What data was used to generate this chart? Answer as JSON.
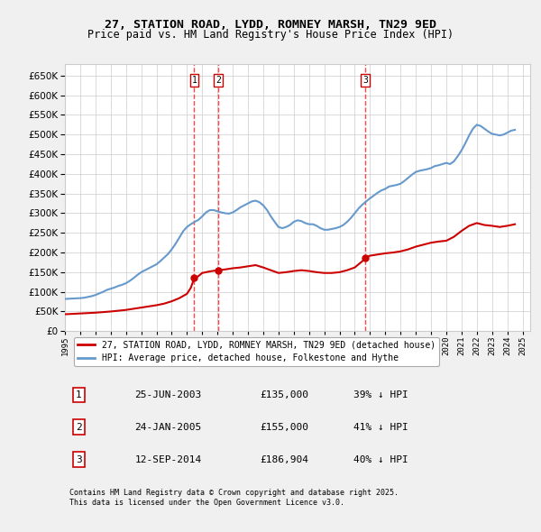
{
  "title": "27, STATION ROAD, LYDD, ROMNEY MARSH, TN29 9ED",
  "subtitle": "Price paid vs. HM Land Registry's House Price Index (HPI)",
  "ylabel": "",
  "ylim": [
    0,
    680000
  ],
  "yticks": [
    0,
    50000,
    100000,
    150000,
    200000,
    250000,
    300000,
    350000,
    400000,
    450000,
    500000,
    550000,
    600000,
    650000
  ],
  "background_color": "#f0f0f0",
  "plot_bg_color": "#ffffff",
  "grid_color": "#cccccc",
  "red_line_color": "#cc0000",
  "blue_line_color": "#6699cc",
  "vline_color": "#ff4444",
  "sale_markers": [
    {
      "date_num": 2003.48,
      "price": 135000,
      "label": "1"
    },
    {
      "date_num": 2005.07,
      "price": 155000,
      "label": "2"
    },
    {
      "date_num": 2014.7,
      "price": 186904,
      "label": "3"
    }
  ],
  "table_rows": [
    {
      "num": "1",
      "date": "25-JUN-2003",
      "price": "£135,000",
      "pct": "39% ↓ HPI"
    },
    {
      "num": "2",
      "date": "24-JAN-2005",
      "price": "£155,000",
      "pct": "41% ↓ HPI"
    },
    {
      "num": "3",
      "date": "12-SEP-2014",
      "price": "£186,904",
      "pct": "40% ↓ HPI"
    }
  ],
  "legend_entries": [
    "27, STATION ROAD, LYDD, ROMNEY MARSH, TN29 9ED (detached house)",
    "HPI: Average price, detached house, Folkestone and Hythe"
  ],
  "footer": "Contains HM Land Registry data © Crown copyright and database right 2025.\nThis data is licensed under the Open Government Licence v3.0.",
  "hpi_data": {
    "years": [
      1995.0,
      1995.25,
      1995.5,
      1995.75,
      1996.0,
      1996.25,
      1996.5,
      1996.75,
      1997.0,
      1997.25,
      1997.5,
      1997.75,
      1998.0,
      1998.25,
      1998.5,
      1998.75,
      1999.0,
      1999.25,
      1999.5,
      1999.75,
      2000.0,
      2000.25,
      2000.5,
      2000.75,
      2001.0,
      2001.25,
      2001.5,
      2001.75,
      2002.0,
      2002.25,
      2002.5,
      2002.75,
      2003.0,
      2003.25,
      2003.5,
      2003.75,
      2004.0,
      2004.25,
      2004.5,
      2004.75,
      2005.0,
      2005.25,
      2005.5,
      2005.75,
      2006.0,
      2006.25,
      2006.5,
      2006.75,
      2007.0,
      2007.25,
      2007.5,
      2007.75,
      2008.0,
      2008.25,
      2008.5,
      2008.75,
      2009.0,
      2009.25,
      2009.5,
      2009.75,
      2010.0,
      2010.25,
      2010.5,
      2010.75,
      2011.0,
      2011.25,
      2011.5,
      2011.75,
      2012.0,
      2012.25,
      2012.5,
      2012.75,
      2013.0,
      2013.25,
      2013.5,
      2013.75,
      2014.0,
      2014.25,
      2014.5,
      2014.75,
      2015.0,
      2015.25,
      2015.5,
      2015.75,
      2016.0,
      2016.25,
      2016.5,
      2016.75,
      2017.0,
      2017.25,
      2017.5,
      2017.75,
      2018.0,
      2018.25,
      2018.5,
      2018.75,
      2019.0,
      2019.25,
      2019.5,
      2019.75,
      2020.0,
      2020.25,
      2020.5,
      2020.75,
      2021.0,
      2021.25,
      2021.5,
      2021.75,
      2022.0,
      2022.25,
      2022.5,
      2022.75,
      2023.0,
      2023.25,
      2023.5,
      2023.75,
      2024.0,
      2024.25,
      2024.5
    ],
    "values": [
      82000,
      82500,
      83000,
      83500,
      84000,
      85000,
      87000,
      89000,
      92000,
      96000,
      100000,
      105000,
      108000,
      111000,
      115000,
      118000,
      122000,
      128000,
      135000,
      143000,
      150000,
      155000,
      160000,
      165000,
      170000,
      178000,
      187000,
      196000,
      208000,
      222000,
      238000,
      254000,
      265000,
      272000,
      278000,
      283000,
      292000,
      302000,
      308000,
      308000,
      305000,
      302000,
      300000,
      299000,
      302000,
      308000,
      315000,
      320000,
      325000,
      330000,
      332000,
      328000,
      320000,
      308000,
      292000,
      278000,
      265000,
      262000,
      265000,
      270000,
      278000,
      282000,
      280000,
      275000,
      272000,
      272000,
      268000,
      262000,
      258000,
      258000,
      260000,
      262000,
      265000,
      270000,
      278000,
      288000,
      300000,
      312000,
      322000,
      330000,
      338000,
      345000,
      352000,
      358000,
      362000,
      368000,
      370000,
      372000,
      375000,
      382000,
      390000,
      398000,
      405000,
      408000,
      410000,
      412000,
      415000,
      420000,
      422000,
      425000,
      428000,
      425000,
      432000,
      445000,
      460000,
      478000,
      498000,
      515000,
      525000,
      522000,
      515000,
      508000,
      502000,
      500000,
      498000,
      500000,
      505000,
      510000,
      512000
    ]
  },
  "price_data": {
    "years": [
      1995.0,
      1995.5,
      1996.0,
      1996.5,
      1997.0,
      1997.5,
      1998.0,
      1998.5,
      1999.0,
      1999.5,
      2000.0,
      2000.5,
      2001.0,
      2001.5,
      2002.0,
      2002.5,
      2003.0,
      2003.25,
      2003.48,
      2003.75,
      2004.0,
      2004.5,
      2005.0,
      2005.07,
      2005.5,
      2006.0,
      2006.5,
      2007.0,
      2007.5,
      2008.0,
      2008.5,
      2009.0,
      2009.5,
      2010.0,
      2010.5,
      2011.0,
      2011.5,
      2012.0,
      2012.5,
      2013.0,
      2013.5,
      2014.0,
      2014.5,
      2014.7,
      2015.0,
      2015.5,
      2016.0,
      2016.5,
      2017.0,
      2017.5,
      2018.0,
      2018.5,
      2019.0,
      2019.5,
      2020.0,
      2020.5,
      2021.0,
      2021.5,
      2022.0,
      2022.5,
      2023.0,
      2023.5,
      2024.0,
      2024.5
    ],
    "values": [
      43000,
      44000,
      45000,
      46000,
      47000,
      48500,
      50000,
      52000,
      54000,
      57000,
      60000,
      63000,
      66000,
      70000,
      76000,
      84000,
      95000,
      110000,
      135000,
      140000,
      148000,
      152000,
      155000,
      155000,
      157000,
      160000,
      162000,
      165000,
      168000,
      162000,
      155000,
      148000,
      150000,
      153000,
      155000,
      153000,
      150000,
      148000,
      148000,
      150000,
      155000,
      162000,
      178000,
      186904,
      192000,
      195000,
      198000,
      200000,
      203000,
      208000,
      215000,
      220000,
      225000,
      228000,
      230000,
      240000,
      255000,
      268000,
      275000,
      270000,
      268000,
      265000,
      268000,
      272000
    ]
  }
}
